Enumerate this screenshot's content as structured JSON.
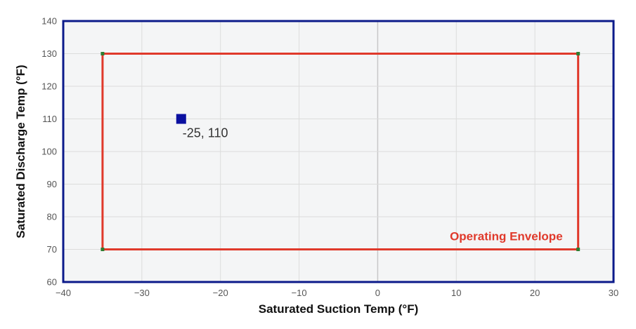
{
  "chart_data": {
    "type": "scatter",
    "title": "",
    "xlabel": "Saturated Suction Temp (°F)",
    "ylabel": "Saturated Discharge Temp (°F)",
    "xlim": [
      -40,
      30
    ],
    "ylim": [
      60,
      140
    ],
    "xticks": [
      -40,
      -30,
      -20,
      -10,
      0,
      10,
      20,
      30
    ],
    "yticks": [
      60,
      70,
      80,
      90,
      100,
      110,
      120,
      130,
      140
    ],
    "xtick_labels": [
      "−40",
      "−30",
      "−20",
      "−10",
      "0",
      "10",
      "20",
      "30"
    ],
    "ytick_labels": [
      "60",
      "70",
      "80",
      "90",
      "100",
      "110",
      "120",
      "130",
      "140"
    ],
    "grid": true,
    "envelope": {
      "label": "Operating Envelope",
      "color": "#e0392b",
      "vertex_color": "#2e7d32",
      "points": [
        [
          -35,
          70
        ],
        [
          -35,
          130
        ],
        [
          25.5,
          130
        ],
        [
          25.5,
          70
        ]
      ]
    },
    "point": {
      "x": -25,
      "y": 110,
      "label": "-25, 110",
      "color": "#0a10a0"
    },
    "colors": {
      "plot_border": "#0b1a8a",
      "plot_background": "#f4f5f6",
      "grid": "#dcdcdc",
      "zero_line": "#c8c8c8"
    }
  }
}
